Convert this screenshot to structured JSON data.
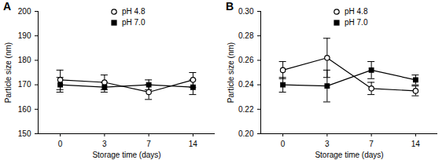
{
  "chart_data": [
    {
      "type": "line",
      "title": "A",
      "x_label": "Storage time (days)",
      "y_label": "Particle size (nm)",
      "categories": [
        "0",
        "3",
        "7",
        "14"
      ],
      "ylim": [
        150,
        200
      ],
      "yticks": [
        150,
        160,
        170,
        180,
        190,
        200
      ],
      "legend": "top",
      "series": [
        {
          "name": "pH 4.8",
          "color": "#000000",
          "marker": "open_circle",
          "line_style": "solid",
          "values": [
            172,
            171,
            167,
            172
          ],
          "errors": [
            4,
            3,
            3,
            3
          ]
        },
        {
          "name": "pH 7.0",
          "color": "#000000",
          "marker": "square",
          "line_style": "solid",
          "values": [
            170,
            169,
            170,
            169
          ],
          "errors": [
            3,
            2,
            2,
            3
          ]
        }
      ]
    },
    {
      "type": "line",
      "title": "B",
      "x_label": "Storage time (days)",
      "y_label": "Particle size (nm)",
      "categories": [
        "0",
        "3",
        "7",
        "14"
      ],
      "ylim": [
        0.2,
        0.3
      ],
      "yticks": [
        {
          "value": 0.2,
          "label": "0.20"
        },
        {
          "value": 0.22,
          "label": "0.22"
        },
        {
          "value": 0.24,
          "label": "0.24"
        },
        {
          "value": 0.26,
          "label": "0.26"
        },
        {
          "value": 0.28,
          "label": "0.28"
        },
        {
          "value": 0.3,
          "label": "0.30"
        }
      ],
      "legend": "top",
      "series": [
        {
          "name": "pH 4.8",
          "color": "#000000",
          "marker": "open_circle",
          "line_style": "solid",
          "values": [
            0.252,
            0.262,
            0.237,
            0.235
          ],
          "errors": [
            0.007,
            0.016,
            0.005,
            0.004
          ]
        },
        {
          "name": "pH 7.0",
          "color": "#000000",
          "marker": "square",
          "line_style": "solid",
          "values": [
            0.24,
            0.239,
            0.252,
            0.244
          ],
          "errors": [
            0.006,
            0.013,
            0.007,
            0.004
          ]
        }
      ]
    }
  ]
}
